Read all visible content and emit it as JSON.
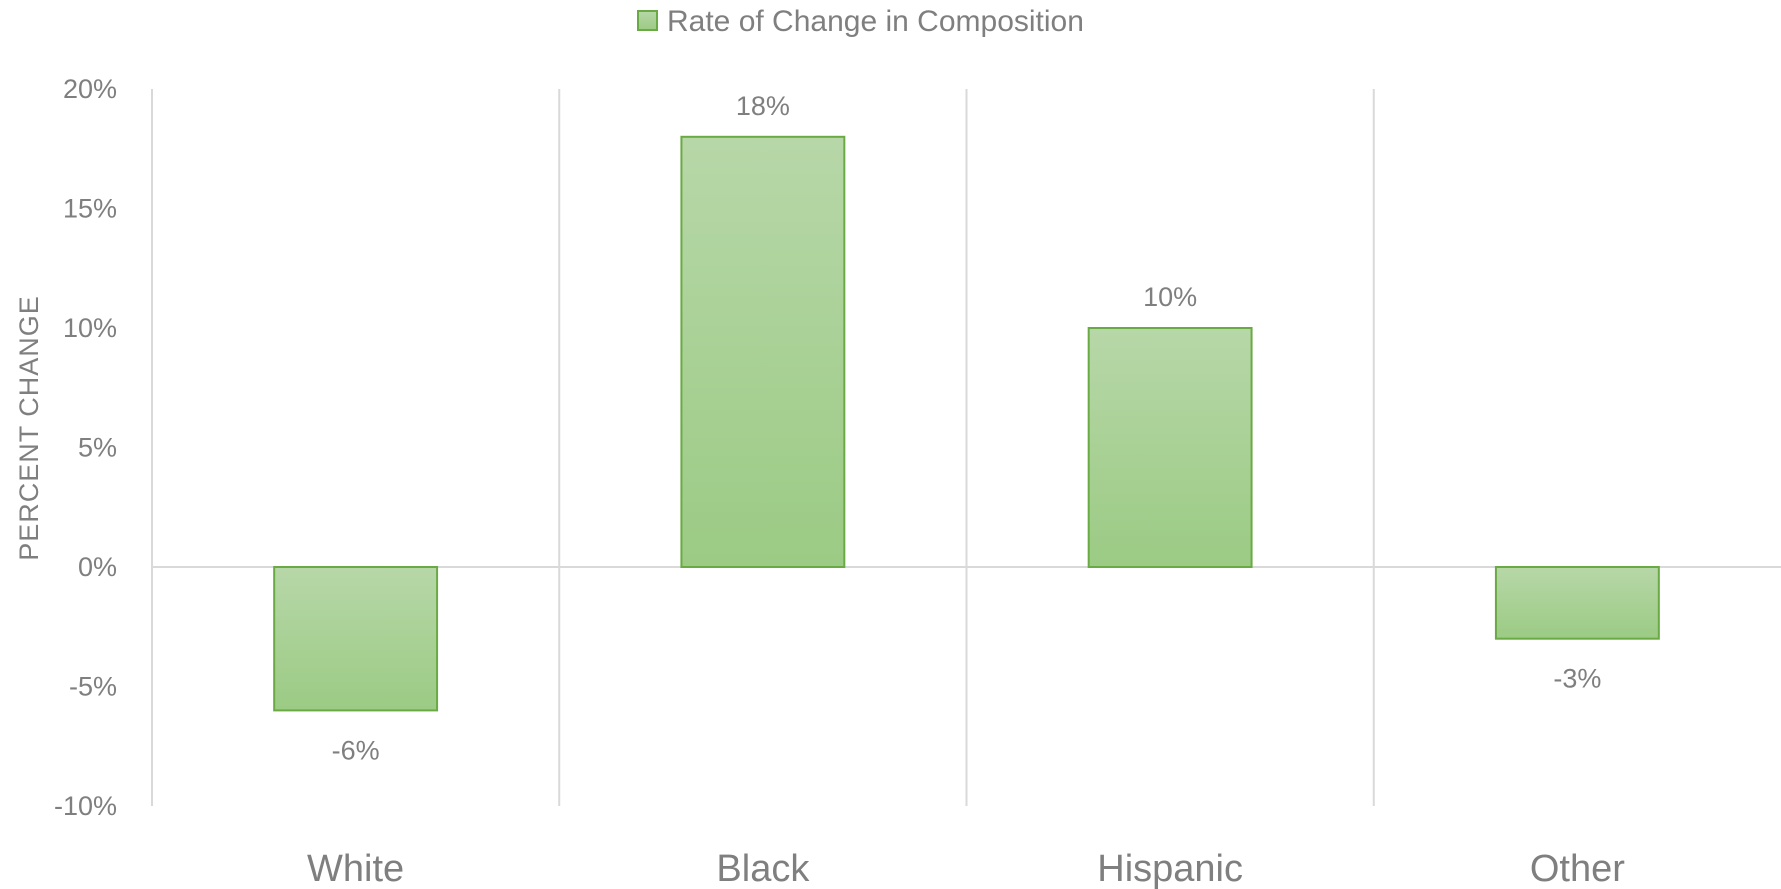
{
  "chart_data": {
    "type": "bar",
    "categories": [
      "White",
      "Black",
      "Hispanic",
      "Other"
    ],
    "series": [
      {
        "name": "Rate of Change in Composition",
        "values": [
          -6,
          18,
          10,
          -3
        ]
      }
    ],
    "data_labels": [
      "-6%",
      "18%",
      "10%",
      "-3%"
    ],
    "ylabel": "PERCENT CHANGE",
    "xlabel": "",
    "ylim": [
      -10,
      20
    ],
    "yticks": [
      20,
      15,
      10,
      5,
      0,
      -5,
      -10
    ],
    "ytick_labels": [
      "20%",
      "15%",
      "10%",
      "5%",
      "0%",
      "-5%",
      "-10%"
    ],
    "grid": "vertical category separators",
    "legend_position": "top-center",
    "colors": {
      "bar_fill_top": "#b7d7a8",
      "bar_fill_bottom": "#9bcb84",
      "bar_border": "#6aaa45",
      "grid": "#d9d9d9",
      "text": "#7f7f7f"
    }
  }
}
